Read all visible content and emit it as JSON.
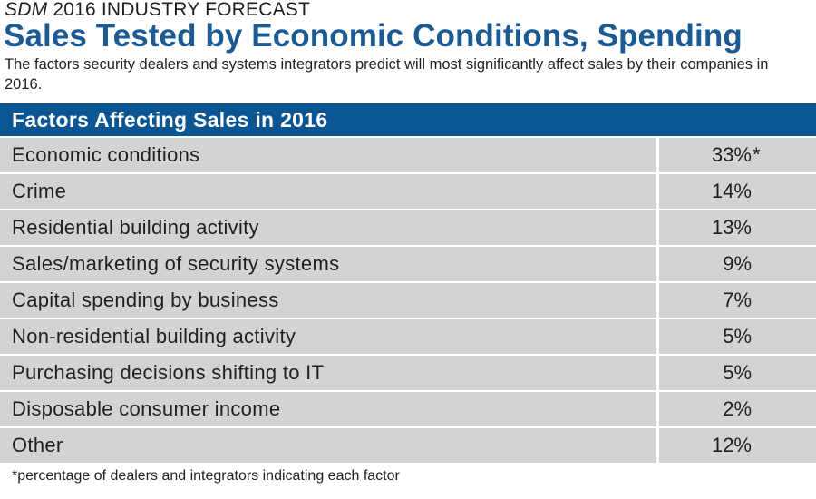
{
  "kicker": {
    "brand": "SDM",
    "rest": "2016 INDUSTRY FORECAST"
  },
  "title": "Sales Tested by Economic Conditions, Spending",
  "subtitle": "The factors security dealers and systems integrators predict will most significantly affect sales by their companies in 2016.",
  "chart_data": {
    "type": "table",
    "header": "Factors Affecting Sales in 2016",
    "rows": [
      {
        "label": "Economic conditions",
        "value": "33%",
        "mark": "*"
      },
      {
        "label": "Crime",
        "value": "14%",
        "mark": ""
      },
      {
        "label": "Residential building activity",
        "value": "13%",
        "mark": ""
      },
      {
        "label": "Sales/marketing of security systems",
        "value": "9%",
        "mark": ""
      },
      {
        "label": "Capital spending by business",
        "value": "7%",
        "mark": ""
      },
      {
        "label": "Non-residential building activity",
        "value": "5%",
        "mark": ""
      },
      {
        "label": "Purchasing decisions shifting to IT",
        "value": "5%",
        "mark": ""
      },
      {
        "label": "Disposable consumer income",
        "value": "2%",
        "mark": ""
      },
      {
        "label": "Other",
        "value": "12%",
        "mark": ""
      }
    ],
    "footnote": "*percentage of dealers and integrators indicating each factor"
  },
  "colors": {
    "title": "#1c5a94",
    "header_bg": "#0b5592",
    "row_bg": "#d1d3d4"
  }
}
